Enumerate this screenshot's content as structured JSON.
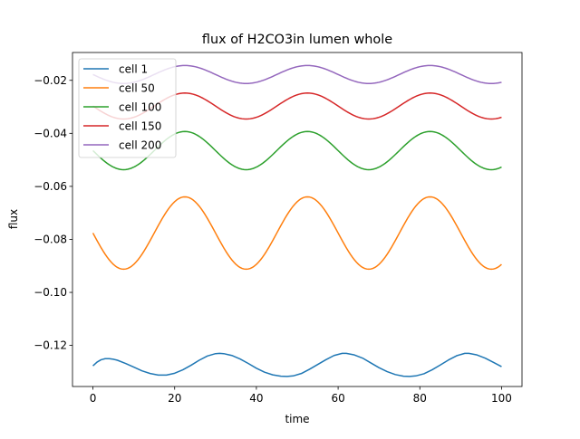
{
  "chart_data": {
    "type": "line",
    "title": "flux of H2CO3in lumen whole",
    "xlabel": "time",
    "ylabel": "flux",
    "xlim": [
      -5,
      105
    ],
    "ylim": [
      -0.1355,
      -0.0095
    ],
    "xticks": [
      0,
      20,
      40,
      60,
      80,
      100
    ],
    "yticks": [
      -0.12,
      -0.1,
      -0.08,
      -0.06,
      -0.04,
      -0.02
    ],
    "ytick_labels": [
      "−0.12",
      "−0.10",
      "−0.08",
      "−0.06",
      "−0.04",
      "−0.02"
    ],
    "legend_position": "top-left",
    "grid": false,
    "series": [
      {
        "name": "cell 1",
        "color": "#1f77b4",
        "points": [
          [
            0,
            -0.1277
          ],
          [
            1,
            -0.1263
          ],
          [
            2,
            -0.1254
          ],
          [
            3,
            -0.125
          ],
          [
            4,
            -0.125
          ],
          [
            5,
            -0.1252
          ],
          [
            6,
            -0.1256
          ],
          [
            8,
            -0.1268
          ],
          [
            10,
            -0.1282
          ],
          [
            12,
            -0.1296
          ],
          [
            14,
            -0.1306
          ],
          [
            16,
            -0.1312
          ],
          [
            18,
            -0.1312
          ],
          [
            20,
            -0.1305
          ],
          [
            22,
            -0.1292
          ],
          [
            24,
            -0.1275
          ],
          [
            26,
            -0.1256
          ],
          [
            28,
            -0.124
          ],
          [
            30,
            -0.1231
          ],
          [
            31,
            -0.123
          ],
          [
            32,
            -0.1231
          ],
          [
            34,
            -0.1238
          ],
          [
            36,
            -0.1251
          ],
          [
            38,
            -0.1268
          ],
          [
            40,
            -0.1286
          ],
          [
            42,
            -0.1301
          ],
          [
            44,
            -0.1311
          ],
          [
            46,
            -0.1316
          ],
          [
            47.5,
            -0.1317
          ],
          [
            49,
            -0.1315
          ],
          [
            51,
            -0.1306
          ],
          [
            53,
            -0.129
          ],
          [
            55,
            -0.1272
          ],
          [
            57,
            -0.1254
          ],
          [
            59,
            -0.1238
          ],
          [
            61,
            -0.123
          ],
          [
            62,
            -0.123
          ],
          [
            64,
            -0.1236
          ],
          [
            66,
            -0.1248
          ],
          [
            68,
            -0.1266
          ],
          [
            70,
            -0.1284
          ],
          [
            72,
            -0.1299
          ],
          [
            74,
            -0.131
          ],
          [
            76,
            -0.1316
          ],
          [
            77.5,
            -0.1317
          ],
          [
            79,
            -0.1315
          ],
          [
            81,
            -0.1307
          ],
          [
            83,
            -0.1292
          ],
          [
            85,
            -0.1274
          ],
          [
            87,
            -0.1255
          ],
          [
            89,
            -0.1239
          ],
          [
            91,
            -0.123
          ],
          [
            92,
            -0.123
          ],
          [
            94,
            -0.1236
          ],
          [
            96,
            -0.1248
          ],
          [
            98,
            -0.1264
          ],
          [
            100,
            -0.128
          ]
        ]
      },
      {
        "name": "cell 50",
        "color": "#ff7f0e",
        "mean": -0.0776,
        "amplitude": 0.01365,
        "period": 30,
        "phase": 0,
        "x_start": 0,
        "x_end": 100
      },
      {
        "name": "cell 100",
        "color": "#2ca02c",
        "mean": -0.0465,
        "amplitude": 0.0072,
        "period": 30,
        "phase": 0,
        "x_start": 0,
        "x_end": 100
      },
      {
        "name": "cell 150",
        "color": "#d62728",
        "mean": -0.0297,
        "amplitude": 0.0049,
        "period": 30,
        "phase": 0,
        "x_start": 0,
        "x_end": 100
      },
      {
        "name": "cell 200",
        "color": "#9467bd",
        "mean": -0.0178,
        "amplitude": 0.0034,
        "period": 30,
        "phase": 0,
        "x_start": 0,
        "x_end": 100
      }
    ]
  }
}
